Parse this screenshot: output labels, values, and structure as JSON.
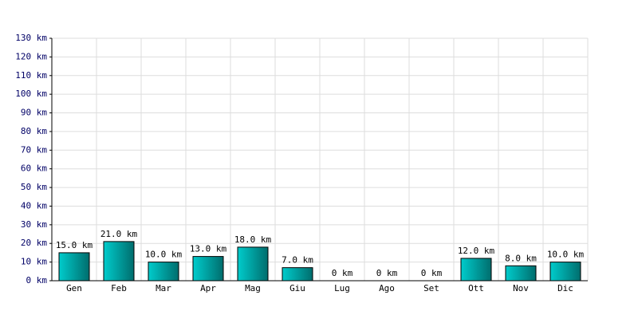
{
  "chart_data": {
    "type": "bar",
    "categories": [
      "Gen",
      "Feb",
      "Mar",
      "Apr",
      "Mag",
      "Giu",
      "Lug",
      "Ago",
      "Set",
      "Ott",
      "Nov",
      "Dic"
    ],
    "values": [
      15,
      21,
      10,
      13,
      18,
      7,
      0,
      0,
      0,
      12,
      8,
      10
    ],
    "value_labels": [
      "15.0 km",
      "21.0 km",
      "10.0 km",
      "13.0 km",
      "18.0 km",
      "7.0 km",
      "0 km",
      "0 km",
      "0 km",
      "12.0 km",
      "8.0 km",
      "10.0 km"
    ],
    "color": "#00cccc",
    "ylim": [
      0,
      130
    ],
    "yticks": [
      {
        "value": 0,
        "label": "0 km"
      },
      {
        "value": 10,
        "label": "10 km"
      },
      {
        "value": 20,
        "label": "20 km"
      },
      {
        "value": 30,
        "label": "30 km"
      },
      {
        "value": 40,
        "label": "40 km"
      },
      {
        "value": 50,
        "label": "50 km"
      },
      {
        "value": 60,
        "label": "60 km"
      },
      {
        "value": 70,
        "label": "70 km"
      },
      {
        "value": 80,
        "label": "80 km"
      },
      {
        "value": 90,
        "label": "90 km"
      },
      {
        "value": 100,
        "label": "100 km"
      },
      {
        "value": 110,
        "label": "110 km"
      },
      {
        "value": 120,
        "label": "120 km"
      },
      {
        "value": 130,
        "label": "130 km"
      }
    ],
    "grid": true
  }
}
